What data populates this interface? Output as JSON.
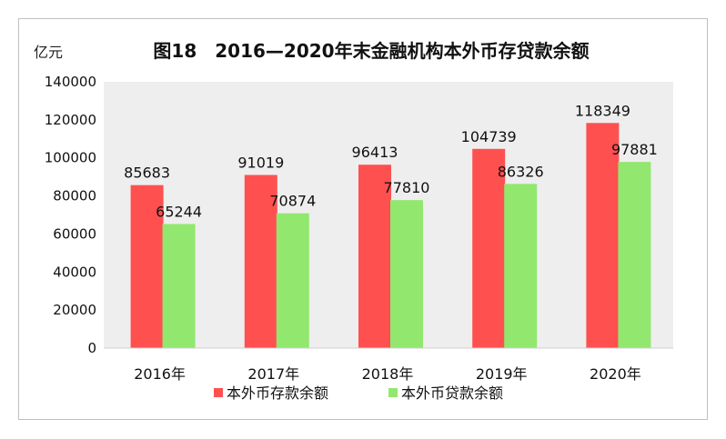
{
  "chart_data": {
    "type": "bar",
    "title": "图18　2016—2020年末金融机构本外币存贷款余额",
    "unit_label": "亿元",
    "categories": [
      "2016年",
      "2017年",
      "2018年",
      "2019年",
      "2020年"
    ],
    "series": [
      {
        "name": "本外币存款余额",
        "color": "#ff5050",
        "values": [
          85683,
          91019,
          96413,
          104739,
          118349
        ]
      },
      {
        "name": "本外币贷款余额",
        "color": "#92e76f",
        "values": [
          65244,
          70874,
          77810,
          86326,
          97881
        ]
      }
    ],
    "ylim": [
      0,
      140000
    ],
    "yticks": [
      0,
      20000,
      40000,
      60000,
      80000,
      100000,
      120000,
      140000
    ],
    "plot_background": "#eeeeee",
    "legend_position": "bottom"
  }
}
